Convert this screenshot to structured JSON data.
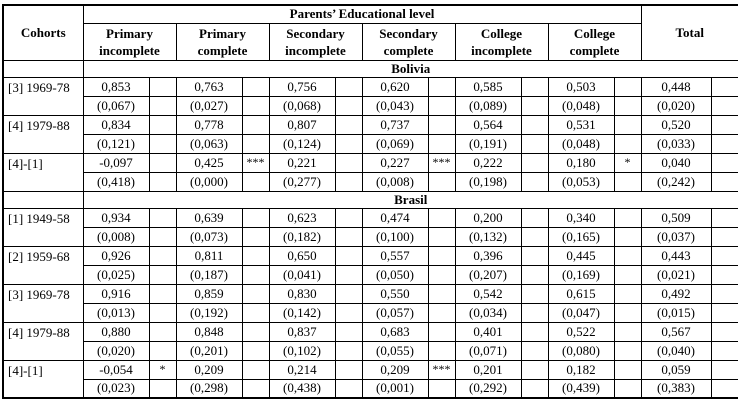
{
  "table": {
    "cohorts_header": "Cohorts",
    "group_header": "Parents’ Educational level",
    "total_header": "Total",
    "columns": [
      "Primary\nincomplete",
      "Primary\ncomplete",
      "Secondary\nincomplete",
      "Secondary\ncomplete",
      "College\nincomplete",
      "College\ncomplete"
    ],
    "sections": [
      {
        "title": "Bolivia",
        "rows": [
          {
            "cohort": "[3] 1969-78",
            "values": [
              "0,853",
              "0,763",
              "0,756",
              "0,620",
              "0,585",
              "0,503",
              "0,448"
            ],
            "stars": [
              "",
              "",
              "",
              "",
              "",
              "",
              ""
            ],
            "se": [
              "(0,067)",
              "(0,027)",
              "(0,068)",
              "(0,043)",
              "(0,089)",
              "(0,048)",
              "(0,020)"
            ]
          },
          {
            "cohort": "[4] 1979-88",
            "values": [
              "0,834",
              "0,778",
              "0,807",
              "0,737",
              "0,564",
              "0,531",
              "0,520"
            ],
            "stars": [
              "",
              "",
              "",
              "",
              "",
              "",
              ""
            ],
            "se": [
              "(0,121)",
              "(0,063)",
              "(0,124)",
              "(0,069)",
              "(0,191)",
              "(0,048)",
              "(0,033)"
            ]
          },
          {
            "cohort": "[4]-[1]",
            "values": [
              "-0,097",
              "0,425",
              "0,221",
              "0,227",
              "0,222",
              "0,180",
              "0,040"
            ],
            "stars": [
              "",
              "***",
              "",
              "***",
              "",
              "*",
              ""
            ],
            "se": [
              "(0,418)",
              "(0,000)",
              "(0,277)",
              "(0,008)",
              "(0,198)",
              "(0,053)",
              "(0,242)"
            ]
          }
        ]
      },
      {
        "title": "Brasil",
        "rows": [
          {
            "cohort": "[1] 1949-58",
            "values": [
              "0,934",
              "0,639",
              "0,623",
              "0,474",
              "0,200",
              "0,340",
              "0,509"
            ],
            "stars": [
              "",
              "",
              "",
              "",
              "",
              "",
              ""
            ],
            "se": [
              "(0,008)",
              "(0,073)",
              "(0,182)",
              "(0,100)",
              "(0,132)",
              "(0,165)",
              "(0,037)"
            ]
          },
          {
            "cohort": "[2] 1959-68",
            "values": [
              "0,926",
              "0,811",
              "0,650",
              "0,557",
              "0,396",
              "0,445",
              "0,443"
            ],
            "stars": [
              "",
              "",
              "",
              "",
              "",
              "",
              ""
            ],
            "se": [
              "(0,025)",
              "(0,187)",
              "(0,041)",
              "(0,050)",
              "(0,207)",
              "(0,169)",
              "(0,021)"
            ]
          },
          {
            "cohort": "[3] 1969-78",
            "values": [
              "0,916",
              "0,859",
              "0,830",
              "0,550",
              "0,542",
              "0,615",
              "0,492"
            ],
            "stars": [
              "",
              "",
              "",
              "",
              "",
              "",
              ""
            ],
            "se": [
              "(0,013)",
              "(0,192)",
              "(0,142)",
              "(0,057)",
              "(0,034)",
              "(0,047)",
              "(0,015)"
            ]
          },
          {
            "cohort": "[4] 1979-88",
            "values": [
              "0,880",
              "0,848",
              "0,837",
              "0,683",
              "0,401",
              "0,522",
              "0,567"
            ],
            "stars": [
              "",
              "",
              "",
              "",
              "",
              "",
              ""
            ],
            "se": [
              "(0,020)",
              "(0,201)",
              "(0,102)",
              "(0,055)",
              "(0,071)",
              "(0,080)",
              "(0,040)"
            ]
          },
          {
            "cohort": "[4]-[1]",
            "values": [
              "-0,054",
              "0,209",
              "0,214",
              "0,209",
              "0,201",
              "0,182",
              "0,059"
            ],
            "stars": [
              "*",
              "",
              "",
              "***",
              "",
              "",
              ""
            ],
            "se": [
              "(0,023)",
              "(0,298)",
              "(0,438)",
              "(0,001)",
              "(0,292)",
              "(0,439)",
              "(0,383)"
            ]
          }
        ]
      }
    ]
  }
}
